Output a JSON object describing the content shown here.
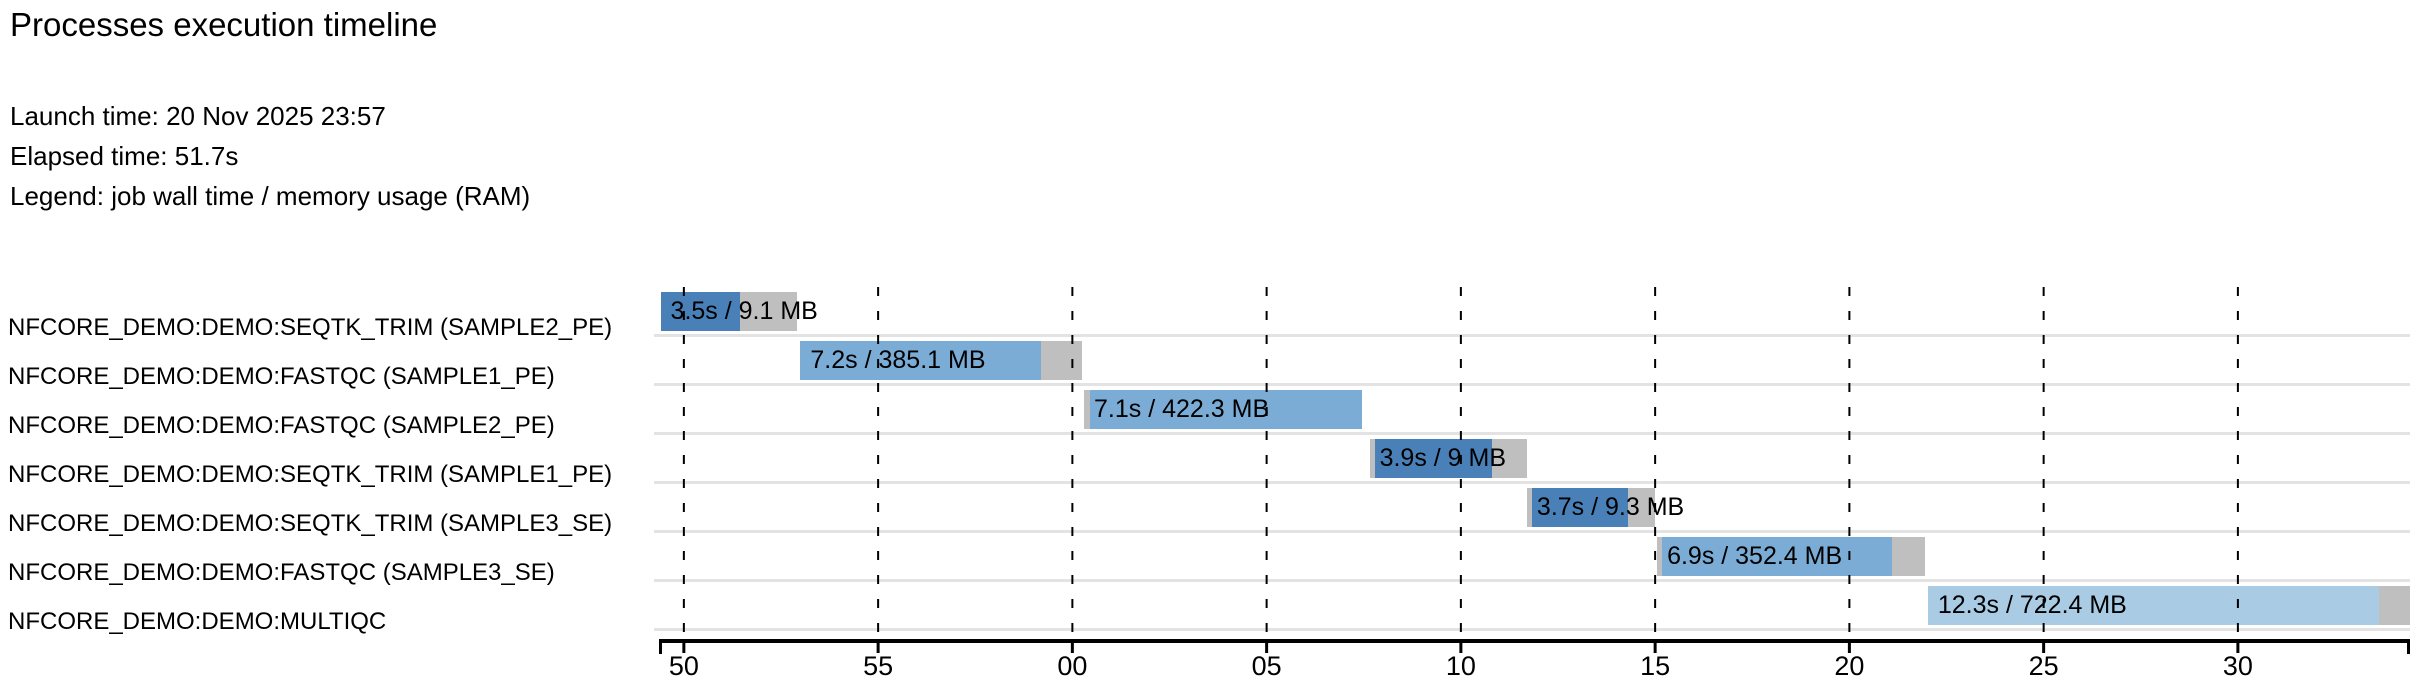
{
  "header": {
    "title": "Processes execution timeline",
    "launch_time": "Launch time: 20 Nov 2025 23:57",
    "elapsed_time": "Elapsed time: 51.7s",
    "legend": "Legend: job wall time / memory usage (RAM)"
  },
  "chart_data": {
    "type": "gantt-timeline",
    "axis": {
      "domain_s": [
        49.36,
        94.43
      ],
      "ticks": [
        {
          "t": 50,
          "label": "50"
        },
        {
          "t": 55,
          "label": "55"
        },
        {
          "t": 60,
          "label": "00"
        },
        {
          "t": 65,
          "label": "05"
        },
        {
          "t": 70,
          "label": "10"
        },
        {
          "t": 75,
          "label": "15"
        },
        {
          "t": 80,
          "label": "20"
        },
        {
          "t": 85,
          "label": "25"
        },
        {
          "t": 90,
          "label": "30"
        }
      ],
      "grid": "dashed-vertical"
    },
    "colors": {
      "seqtk_trim_bar": "#4a80b8",
      "fastqc_bar": "#7bacd5",
      "multiqc_bar": "#a9cbe3",
      "overhead_gray": "#bfbfbf",
      "row_separator": "#e3e3e3"
    },
    "tasks": [
      {
        "label": "NFCORE_DEMO:DEMO:SEQTK_TRIM (SAMPLE2_PE)",
        "bar_label": "3.5s / 9.1 MB",
        "wall_s": 3.5,
        "mem_mb": 9.1,
        "start_s": 49.4,
        "run_start_s": 49.4,
        "run_end_s": 51.45,
        "end_s": 52.9,
        "color": "#4a80b8"
      },
      {
        "label": "NFCORE_DEMO:DEMO:FASTQC (SAMPLE1_PE)",
        "bar_label": "7.2s / 385.1 MB",
        "wall_s": 7.2,
        "mem_mb": 385.1,
        "start_s": 53.0,
        "run_start_s": 53.0,
        "run_end_s": 59.2,
        "end_s": 60.25,
        "color": "#7bacd5"
      },
      {
        "label": "NFCORE_DEMO:DEMO:FASTQC (SAMPLE2_PE)",
        "bar_label": "7.1s / 422.3 MB",
        "wall_s": 7.1,
        "mem_mb": 422.3,
        "start_s": 60.3,
        "run_start_s": 60.45,
        "run_end_s": 67.45,
        "end_s": 67.45,
        "color": "#7bacd5"
      },
      {
        "label": "NFCORE_DEMO:DEMO:SEQTK_TRIM (SAMPLE1_PE)",
        "bar_label": "3.9s / 9 MB",
        "wall_s": 3.9,
        "mem_mb": 9,
        "start_s": 67.65,
        "run_start_s": 67.78,
        "run_end_s": 70.8,
        "end_s": 71.7,
        "color": "#4a80b8"
      },
      {
        "label": "NFCORE_DEMO:DEMO:SEQTK_TRIM (SAMPLE3_SE)",
        "bar_label": "3.7s / 9.3 MB",
        "wall_s": 3.7,
        "mem_mb": 9.3,
        "start_s": 71.7,
        "run_start_s": 71.83,
        "run_end_s": 74.3,
        "end_s": 74.99,
        "color": "#4a80b8"
      },
      {
        "label": "NFCORE_DEMO:DEMO:FASTQC (SAMPLE3_SE)",
        "bar_label": "6.9s / 352.4 MB",
        "wall_s": 6.9,
        "mem_mb": 352.4,
        "start_s": 75.05,
        "run_start_s": 75.18,
        "run_end_s": 81.1,
        "end_s": 81.95,
        "color": "#7bacd5"
      },
      {
        "label": "NFCORE_DEMO:DEMO:MULTIQC",
        "bar_label": "12.3s / 722.4 MB",
        "wall_s": 12.3,
        "mem_mb": 722.4,
        "start_s": 82.02,
        "run_start_s": 82.02,
        "run_end_s": 93.63,
        "end_s": 94.43,
        "color": "#a9cbe3"
      }
    ]
  }
}
